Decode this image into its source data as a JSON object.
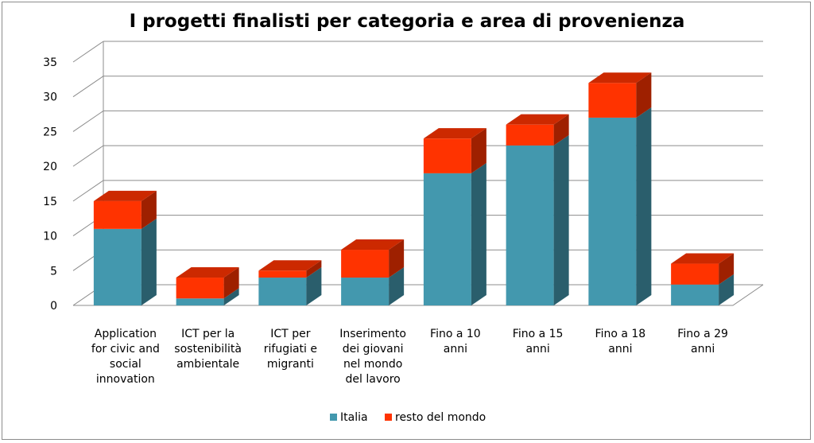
{
  "chart_data": {
    "type": "bar",
    "stacked": true,
    "three_d": true,
    "title": "I progetti finalisti per categoria e area di provenienza",
    "categories": [
      [
        "Application",
        "for civic and",
        "social",
        "innovation"
      ],
      [
        "ICT per la",
        "sostenibilità",
        "ambientale"
      ],
      [
        "ICT per",
        "rifugiati e",
        "migranti"
      ],
      [
        "Inserimento",
        "dei giovani",
        "nel mondo",
        "del lavoro"
      ],
      [
        "Fino a 10",
        "anni"
      ],
      [
        "Fino a 15",
        "anni"
      ],
      [
        "Fino a 18",
        "anni"
      ],
      [
        "Fino a 29",
        "anni"
      ]
    ],
    "series": [
      {
        "name": "Italia",
        "color": "#4398AE",
        "values": [
          11,
          1,
          4,
          4,
          19,
          23,
          27,
          3
        ]
      },
      {
        "name": "resto del mondo",
        "color": "#FF3300",
        "values": [
          4,
          3,
          1,
          4,
          5,
          3,
          5,
          3
        ]
      }
    ],
    "ylim": [
      0,
      35
    ],
    "yticks": [
      0,
      5,
      10,
      15,
      20,
      25,
      30,
      35
    ],
    "grid": true,
    "legend_position": "bottom"
  }
}
